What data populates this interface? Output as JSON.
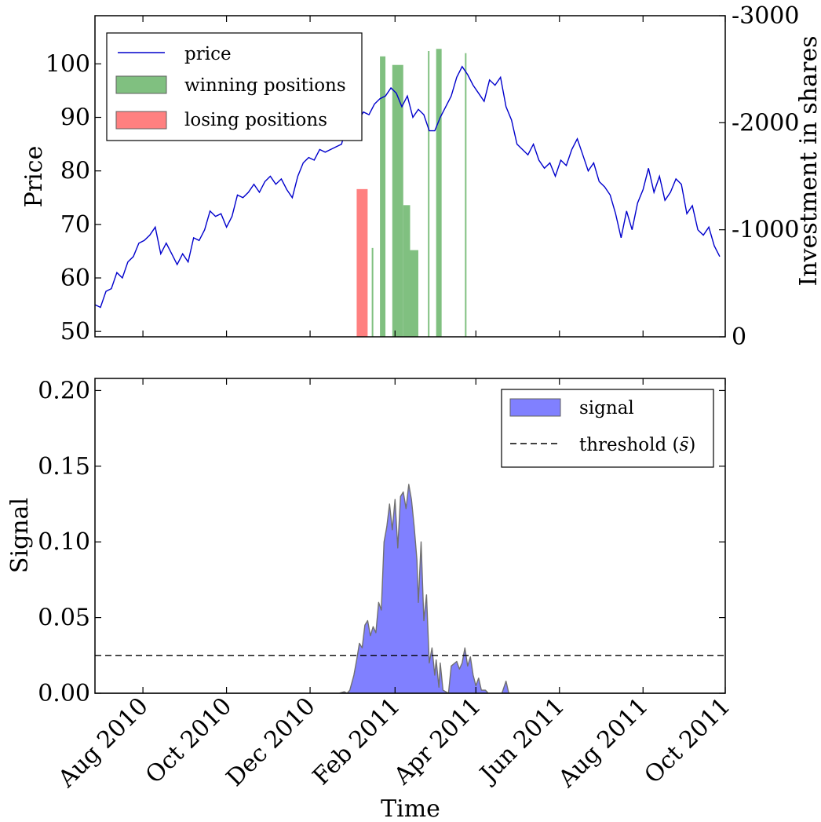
{
  "chart_data": [
    {
      "type": "line",
      "ylabel": "Price",
      "y2label": "Investment in shares",
      "ylim": [
        49,
        109
      ],
      "y2lim": [
        0,
        -3000
      ],
      "yticks": [
        50,
        60,
        70,
        80,
        90,
        100
      ],
      "y2ticks": [
        0,
        -1000,
        -2000,
        -3000
      ],
      "y2tick_labels": [
        "0",
        "-1000",
        "-2000",
        "-3000"
      ],
      "xlim": [
        "2010-06-27",
        "2011-09-30"
      ],
      "legend": {
        "placement": "top-left",
        "entries": [
          {
            "label": "price",
            "kind": "line",
            "color": "#0000cc"
          },
          {
            "label": "winning positions",
            "kind": "patch",
            "color": "#80c080"
          },
          {
            "label": "losing positions",
            "kind": "patch",
            "color": "#ff8080"
          }
        ]
      },
      "series": [
        {
          "name": "price",
          "color": "#0000cc",
          "points": [
            [
              "2010-06-27",
              55
            ],
            [
              "2010-07-01",
              54.5
            ],
            [
              "2010-07-05",
              57.5
            ],
            [
              "2010-07-09",
              58
            ],
            [
              "2010-07-13",
              61
            ],
            [
              "2010-07-17",
              60
            ],
            [
              "2010-07-21",
              63
            ],
            [
              "2010-07-25",
              64
            ],
            [
              "2010-07-29",
              66.5
            ],
            [
              "2010-08-02",
              67
            ],
            [
              "2010-08-06",
              68
            ],
            [
              "2010-08-10",
              69.5
            ],
            [
              "2010-08-14",
              64.5
            ],
            [
              "2010-08-18",
              66.5
            ],
            [
              "2010-08-22",
              64.5
            ],
            [
              "2010-08-26",
              62.5
            ],
            [
              "2010-08-30",
              64.5
            ],
            [
              "2010-09-03",
              63
            ],
            [
              "2010-09-07",
              67.5
            ],
            [
              "2010-09-11",
              67
            ],
            [
              "2010-09-15",
              69
            ],
            [
              "2010-09-19",
              72.5
            ],
            [
              "2010-09-23",
              71.5
            ],
            [
              "2010-09-27",
              72
            ],
            [
              "2010-10-01",
              69.5
            ],
            [
              "2010-10-05",
              71.5
            ],
            [
              "2010-10-09",
              75.5
            ],
            [
              "2010-10-13",
              75
            ],
            [
              "2010-10-17",
              76
            ],
            [
              "2010-10-21",
              77.5
            ],
            [
              "2010-10-25",
              76
            ],
            [
              "2010-10-29",
              78
            ],
            [
              "2010-11-02",
              79
            ],
            [
              "2010-11-06",
              77.5
            ],
            [
              "2010-11-10",
              78.5
            ],
            [
              "2010-11-14",
              76.5
            ],
            [
              "2010-11-18",
              75
            ],
            [
              "2010-11-22",
              79
            ],
            [
              "2010-11-26",
              81.5
            ],
            [
              "2010-11-30",
              82.5
            ],
            [
              "2010-12-04",
              82
            ],
            [
              "2010-12-08",
              84
            ],
            [
              "2010-12-12",
              83.5
            ],
            [
              "2010-12-16",
              84
            ],
            [
              "2010-12-20",
              84.5
            ],
            [
              "2010-12-24",
              85
            ],
            [
              "2010-12-28",
              89
            ],
            [
              "2011-01-01",
              90.5
            ],
            [
              "2011-01-05",
              89.5
            ],
            [
              "2011-01-09",
              91
            ],
            [
              "2011-01-13",
              90.5
            ],
            [
              "2011-01-17",
              92.5
            ],
            [
              "2011-01-21",
              93.5
            ],
            [
              "2011-01-25",
              94
            ],
            [
              "2011-01-29",
              95.5
            ],
            [
              "2011-02-02",
              94.5
            ],
            [
              "2011-02-06",
              92
            ],
            [
              "2011-02-10",
              94
            ],
            [
              "2011-02-14",
              90
            ],
            [
              "2011-02-18",
              91.5
            ],
            [
              "2011-02-22",
              90.5
            ],
            [
              "2011-02-26",
              87.5
            ],
            [
              "2011-03-02",
              87.5
            ],
            [
              "2011-03-06",
              90
            ],
            [
              "2011-03-10",
              92
            ],
            [
              "2011-03-14",
              94
            ],
            [
              "2011-03-18",
              97.5
            ],
            [
              "2011-03-22",
              99.5
            ],
            [
              "2011-03-26",
              98
            ],
            [
              "2011-03-30",
              96
            ],
            [
              "2011-04-03",
              94.5
            ],
            [
              "2011-04-07",
              93
            ],
            [
              "2011-04-11",
              97
            ],
            [
              "2011-04-15",
              96
            ],
            [
              "2011-04-19",
              97.5
            ],
            [
              "2011-04-23",
              92
            ],
            [
              "2011-04-27",
              89.5
            ],
            [
              "2011-05-01",
              85
            ],
            [
              "2011-05-05",
              84
            ],
            [
              "2011-05-09",
              83
            ],
            [
              "2011-05-13",
              85
            ],
            [
              "2011-05-17",
              82
            ],
            [
              "2011-05-21",
              80.5
            ],
            [
              "2011-05-25",
              81.5
            ],
            [
              "2011-05-29",
              79
            ],
            [
              "2011-06-02",
              82
            ],
            [
              "2011-06-06",
              81
            ],
            [
              "2011-06-10",
              84
            ],
            [
              "2011-06-14",
              86
            ],
            [
              "2011-06-18",
              83
            ],
            [
              "2011-06-22",
              80
            ],
            [
              "2011-06-26",
              81.5
            ],
            [
              "2011-06-30",
              78
            ],
            [
              "2011-07-04",
              77
            ],
            [
              "2011-07-08",
              75.5
            ],
            [
              "2011-07-12",
              72
            ],
            [
              "2011-07-16",
              67.5
            ],
            [
              "2011-07-20",
              72.5
            ],
            [
              "2011-07-24",
              69
            ],
            [
              "2011-07-28",
              74
            ],
            [
              "2011-08-01",
              76.5
            ],
            [
              "2011-08-05",
              80.5
            ],
            [
              "2011-08-09",
              76
            ],
            [
              "2011-08-13",
              79
            ],
            [
              "2011-08-17",
              74.5
            ],
            [
              "2011-08-21",
              76
            ],
            [
              "2011-08-25",
              78.5
            ],
            [
              "2011-08-29",
              77.5
            ],
            [
              "2011-09-02",
              72
            ],
            [
              "2011-09-06",
              73.5
            ],
            [
              "2011-09-10",
              69
            ],
            [
              "2011-09-14",
              68
            ],
            [
              "2011-09-18",
              69.5
            ],
            [
              "2011-09-22",
              66
            ],
            [
              "2011-09-26",
              64
            ]
          ]
        }
      ],
      "bars": [
        {
          "group": "losing positions",
          "color": "#ff8080",
          "start": "2011-01-04",
          "end": "2011-01-12",
          "value": -1380
        },
        {
          "group": "winning positions",
          "color": "#80c080",
          "start": "2011-01-15",
          "end": "2011-01-16",
          "value": -830
        },
        {
          "group": "winning positions",
          "color": "#80c080",
          "start": "2011-01-21",
          "end": "2011-01-25",
          "value": -2620
        },
        {
          "group": "winning positions",
          "color": "#80c080",
          "start": "2011-01-30",
          "end": "2011-02-07",
          "value": -2540
        },
        {
          "group": "winning positions",
          "color": "#80c080",
          "start": "2011-02-07",
          "end": "2011-02-12",
          "value": -1230
        },
        {
          "group": "winning positions",
          "color": "#80c080",
          "start": "2011-02-12",
          "end": "2011-02-18",
          "value": -810
        },
        {
          "group": "winning positions",
          "color": "#80c080",
          "start": "2011-02-25",
          "end": "2011-02-26",
          "value": -2670
        },
        {
          "group": "winning positions",
          "color": "#80c080",
          "start": "2011-03-03",
          "end": "2011-03-07",
          "value": -2690
        },
        {
          "group": "winning positions",
          "color": "#80c080",
          "start": "2011-03-24",
          "end": "2011-03-25",
          "value": -2650
        }
      ]
    },
    {
      "type": "area",
      "xlabel": "Time",
      "ylabel": "Signal",
      "ylim": [
        0,
        0.208
      ],
      "yticks": [
        0.0,
        0.05,
        0.1,
        0.15,
        0.2
      ],
      "ytick_labels": [
        "0.00",
        "0.05",
        "0.10",
        "0.15",
        "0.20"
      ],
      "xlim": [
        "2010-06-27",
        "2011-09-30"
      ],
      "xticks": [
        "2010-08-01",
        "2010-10-01",
        "2010-12-01",
        "2011-02-01",
        "2011-04-01",
        "2011-06-01",
        "2011-08-01",
        "2011-10-01"
      ],
      "xtick_labels": [
        "Aug 2010",
        "Oct 2010",
        "Dec 2010",
        "Feb 2011",
        "Apr 2011",
        "Jun 2011",
        "Aug 2011",
        "Oct 2011"
      ],
      "threshold": 0.025,
      "legend": {
        "placement": "top-right",
        "entries": [
          {
            "label": "signal",
            "kind": "patch",
            "color": "#8080ff"
          },
          {
            "label": "threshold ",
            "math": "s̄",
            "kind": "dashed-line",
            "color": "#000000"
          }
        ]
      },
      "series": [
        {
          "name": "signal",
          "color": "#8080ff",
          "points": [
            [
              "2010-06-27",
              0
            ],
            [
              "2010-12-22",
              0
            ],
            [
              "2010-12-26",
              0.001
            ],
            [
              "2010-12-28",
              0
            ],
            [
              "2010-12-30",
              0.002
            ],
            [
              "2011-01-02",
              0.012
            ],
            [
              "2011-01-04",
              0.022
            ],
            [
              "2011-01-06",
              0.033
            ],
            [
              "2011-01-08",
              0.03
            ],
            [
              "2011-01-10",
              0.045
            ],
            [
              "2011-01-12",
              0.048
            ],
            [
              "2011-01-14",
              0.038
            ],
            [
              "2011-01-16",
              0.044
            ],
            [
              "2011-01-18",
              0.04
            ],
            [
              "2011-01-20",
              0.06
            ],
            [
              "2011-01-22",
              0.055
            ],
            [
              "2011-01-24",
              0.1
            ],
            [
              "2011-01-26",
              0.11
            ],
            [
              "2011-01-28",
              0.125
            ],
            [
              "2011-01-30",
              0.108
            ],
            [
              "2011-02-01",
              0.128
            ],
            [
              "2011-02-03",
              0.096
            ],
            [
              "2011-02-05",
              0.13
            ],
            [
              "2011-02-07",
              0.133
            ],
            [
              "2011-02-09",
              0.122
            ],
            [
              "2011-02-11",
              0.138
            ],
            [
              "2011-02-13",
              0.128
            ],
            [
              "2011-02-15",
              0.11
            ],
            [
              "2011-02-17",
              0.088
            ],
            [
              "2011-02-18",
              0.06
            ],
            [
              "2011-02-20",
              0.1
            ],
            [
              "2011-02-22",
              0.048
            ],
            [
              "2011-02-24",
              0.065
            ],
            [
              "2011-02-26",
              0.02
            ],
            [
              "2011-02-28",
              0.03
            ],
            [
              "2011-03-02",
              0.012
            ],
            [
              "2011-03-03",
              0.022
            ],
            [
              "2011-03-05",
              0.004
            ],
            [
              "2011-03-06",
              0.02
            ],
            [
              "2011-03-08",
              0.002
            ],
            [
              "2011-03-12",
              0
            ],
            [
              "2011-03-14",
              0.018
            ],
            [
              "2011-03-18",
              0.021
            ],
            [
              "2011-03-20",
              0.016
            ],
            [
              "2011-03-22",
              0.02
            ],
            [
              "2011-03-24",
              0.03
            ],
            [
              "2011-03-26",
              0.018
            ],
            [
              "2011-03-28",
              0.024
            ],
            [
              "2011-03-30",
              0.012
            ],
            [
              "2011-04-01",
              0.005
            ],
            [
              "2011-04-03",
              0.01
            ],
            [
              "2011-04-05",
              0.002
            ],
            [
              "2011-04-08",
              0.002
            ],
            [
              "2011-04-10",
              0
            ],
            [
              "2011-04-20",
              0
            ],
            [
              "2011-04-23",
              0.008
            ],
            [
              "2011-04-25",
              0
            ],
            [
              "2011-09-30",
              0
            ]
          ]
        }
      ]
    }
  ]
}
